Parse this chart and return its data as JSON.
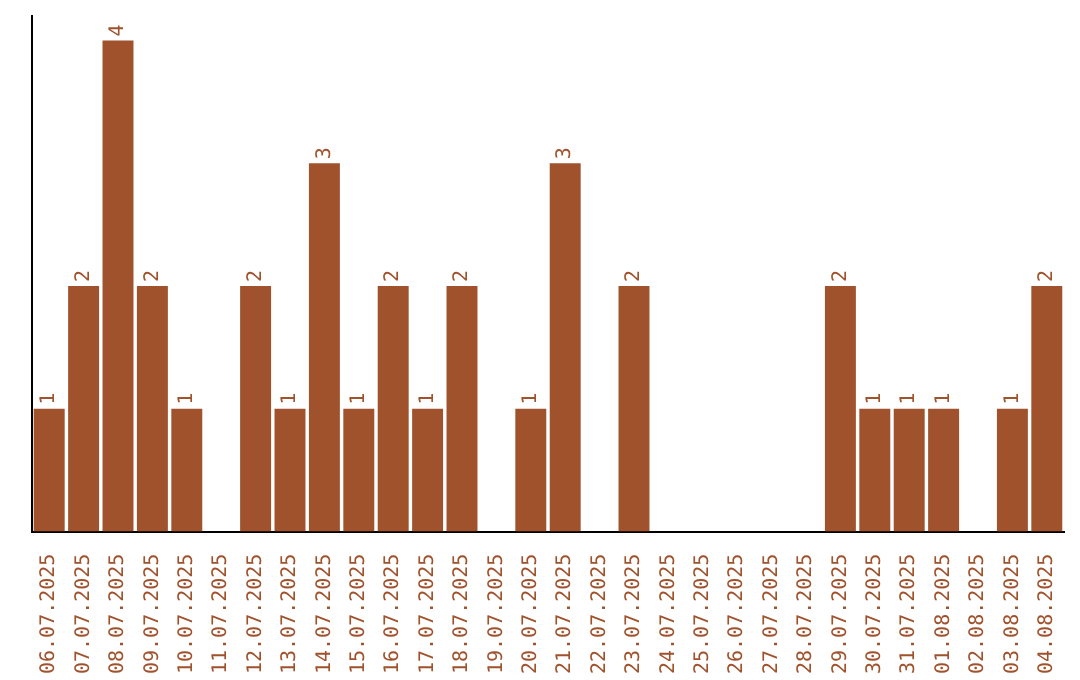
{
  "chart_data": {
    "type": "bar",
    "categories": [
      "06.07.2025",
      "07.07.2025",
      "08.07.2025",
      "09.07.2025",
      "10.07.2025",
      "11.07.2025",
      "12.07.2025",
      "13.07.2025",
      "14.07.2025",
      "15.07.2025",
      "16.07.2025",
      "17.07.2025",
      "18.07.2025",
      "19.07.2025",
      "20.07.2025",
      "21.07.2025",
      "22.07.2025",
      "23.07.2025",
      "24.07.2025",
      "25.07.2025",
      "26.07.2025",
      "27.07.2025",
      "28.07.2025",
      "29.07.2025",
      "30.07.2025",
      "31.07.2025",
      "01.08.2025",
      "02.08.2025",
      "03.08.2025",
      "04.08.2025"
    ],
    "values": [
      1,
      2,
      4,
      2,
      1,
      null,
      2,
      1,
      3,
      1,
      2,
      1,
      2,
      null,
      1,
      3,
      null,
      2,
      null,
      null,
      null,
      null,
      null,
      2,
      1,
      1,
      1,
      null,
      1,
      2
    ],
    "color": "#a0522d",
    "ylim": [
      0,
      4.2
    ],
    "data_labels": true,
    "grid": false,
    "legend": false,
    "tick_labels": "x"
  }
}
